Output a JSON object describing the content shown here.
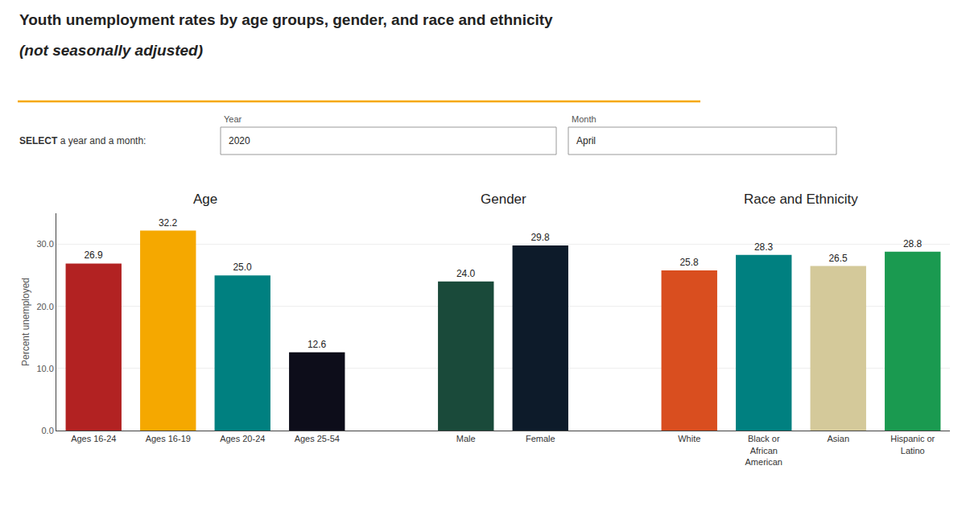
{
  "chart_data": {
    "type": "bar",
    "title": "Youth unemployment rates by age groups, gender, and race and ethnicity",
    "subtitle": "(not seasonally adjusted)",
    "annotations": [
      "SELECT a year and a month:",
      "Year",
      "2020",
      "Month",
      "April",
      "Age",
      "Gender",
      "Race and Ethnicity"
    ],
    "categories": [
      "Ages 16-24",
      "Ages 16-19",
      "Ages 20-24",
      "Ages 25-54",
      null,
      "Male",
      "Female",
      null,
      "White",
      "Black or\nAfrican\nAmerican",
      "Asian",
      "Hispanic or\nLatino"
    ],
    "values": [
      26.9,
      32.2,
      25.0,
      12.6,
      null,
      24.0,
      29.8,
      null,
      25.8,
      28.3,
      26.5,
      28.8
    ],
    "value_labels": [
      "26.9",
      "32.2",
      "25.0",
      "12.6",
      null,
      "24.0",
      "29.8",
      null,
      "25.8",
      "28.3",
      "26.5",
      "28.8"
    ],
    "colors": [
      "#b22222",
      "#f5a800",
      "#008080",
      "#0d0d1a",
      null,
      "#1a4a3a",
      "#0d1b2a",
      null,
      "#d94e1f",
      "#008080",
      "#d4c99a",
      "#1a9a50"
    ],
    "ylabel": "Percent unemployed",
    "ylim": [
      0,
      35
    ],
    "yticks": [
      {
        "value": 0,
        "label": "0.0"
      },
      {
        "value": 10,
        "label": "10.0"
      },
      {
        "value": 20,
        "label": "20.0"
      },
      {
        "value": 30,
        "label": "30.0"
      }
    ],
    "grid": true,
    "data_labels": true
  }
}
